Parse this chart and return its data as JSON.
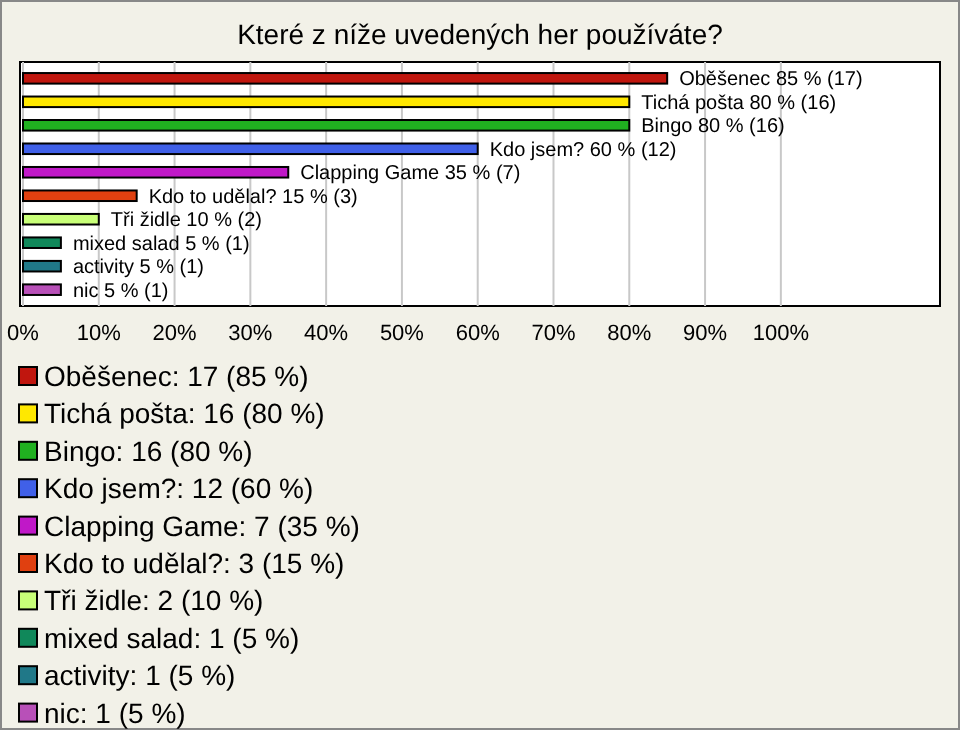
{
  "chart_data": {
    "type": "bar",
    "orientation": "horizontal",
    "title": "Které z níže uvedených her používáte?",
    "categories": [
      null,
      null,
      null,
      null,
      null,
      null,
      null,
      null,
      null,
      null
    ],
    "values": [
      85,
      80,
      80,
      60,
      35,
      15,
      10,
      5,
      5,
      5
    ],
    "colors": [
      "#c0160e",
      "#ffe800",
      "#20b020",
      "#4060e8",
      "#c018c8",
      "#e04010",
      "#c8ff78",
      "#10885a",
      "#207888",
      "#b850b8"
    ],
    "value_labels": [
      "Oběšenec 85 % (17)",
      "Tichá pošta 80 % (16)",
      "Bingo 80 % (16)",
      "Kdo jsem? 60 % (12)",
      "Clapping Game 35 % (7)",
      "Kdo to udělal? 15 % (3)",
      "Tři židle 10 % (2)",
      "mixed salad 5 % (1)",
      "activity 5 % (1)",
      "nic 5 % (1)"
    ],
    "xlim": [
      0,
      121
    ],
    "xticks": [
      {
        "value": 0,
        "label": "0%"
      },
      {
        "value": 10,
        "label": "10%"
      },
      {
        "value": 20,
        "label": "20%"
      },
      {
        "value": 30,
        "label": "30%"
      },
      {
        "value": 40,
        "label": "40%"
      },
      {
        "value": 50,
        "label": "50%"
      },
      {
        "value": 60,
        "label": "60%"
      },
      {
        "value": 70,
        "label": "70%"
      },
      {
        "value": 80,
        "label": "80%"
      },
      {
        "value": 90,
        "label": "90%"
      },
      {
        "value": 100,
        "label": "100%"
      }
    ],
    "grid": "x",
    "tick_labels": "x",
    "annotations": [
      "Oběšenec: 17 (85 %)",
      "Tichá pošta: 16 (80 %)",
      "Bingo: 16 (80 %)",
      "Kdo jsem?: 12 (60 %)",
      "Clapping Game: 7 (35 %)",
      "Kdo to udělal?: 3 (15 %)",
      "Tři židle: 2 (10 %)",
      "mixed salad: 1 (5 %)",
      "activity: 1 (5 %)",
      "nic: 1 (5 %)"
    ]
  }
}
